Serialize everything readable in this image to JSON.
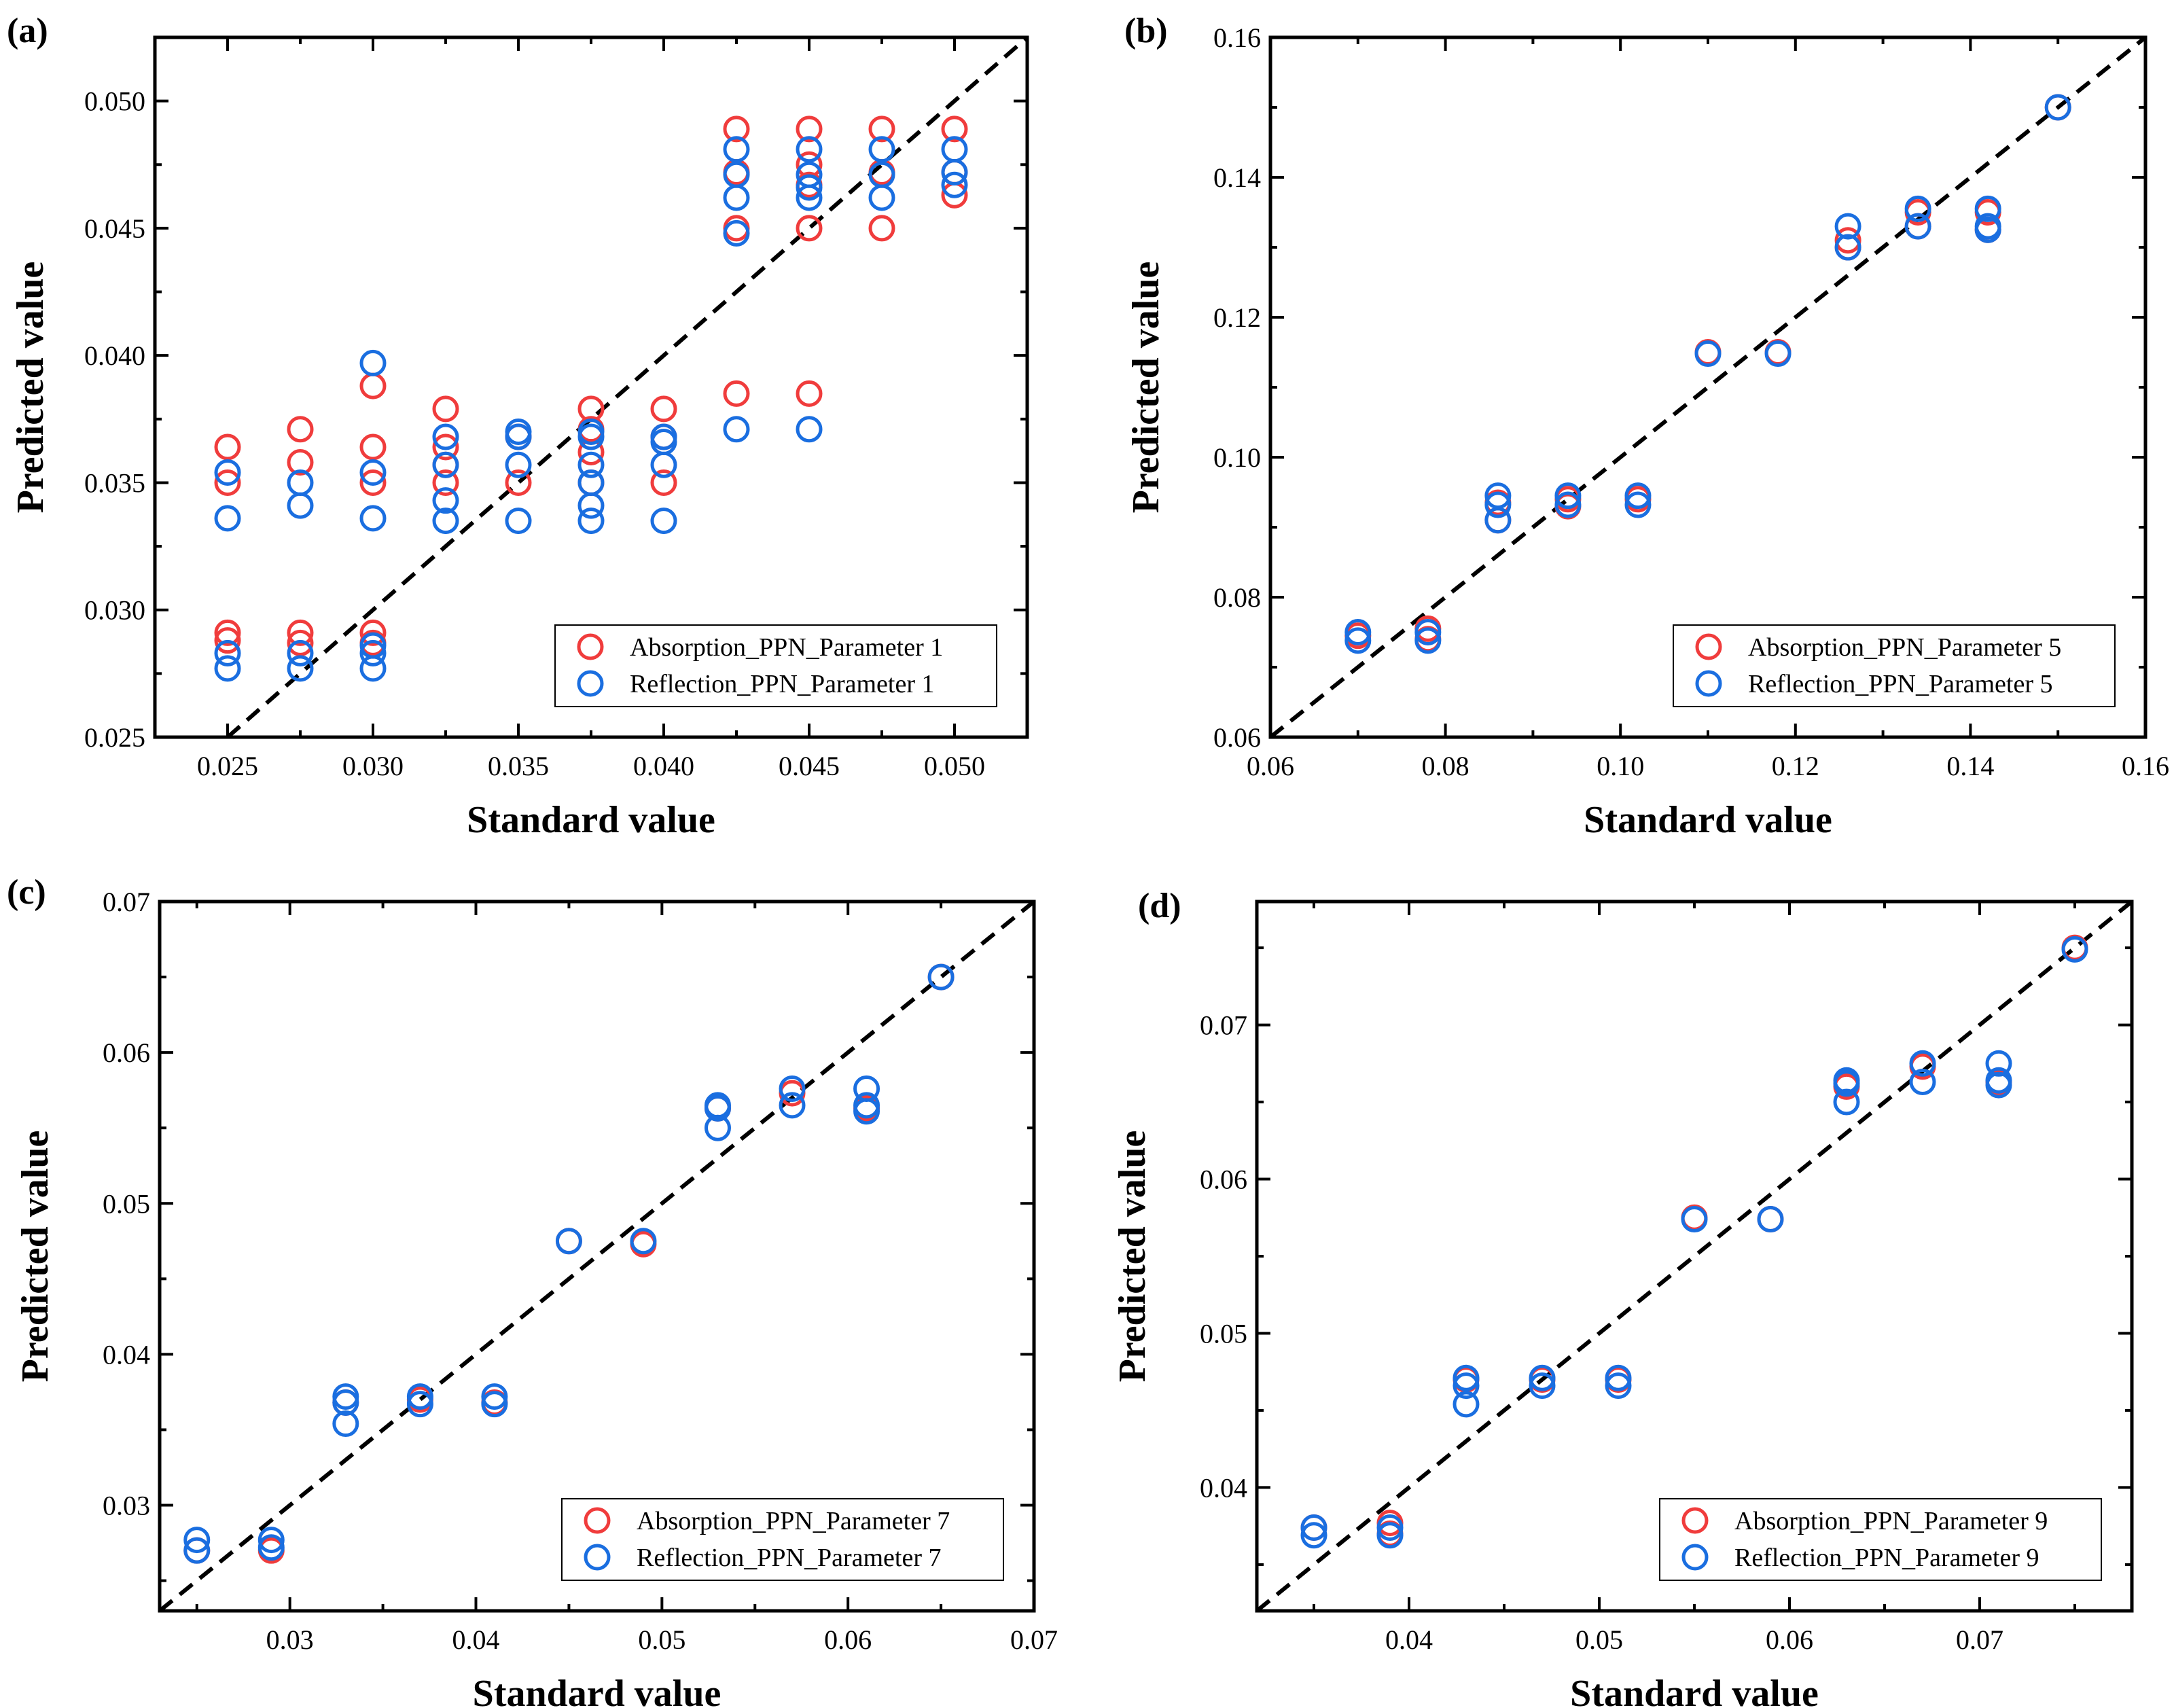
{
  "colors": {
    "absorption": "#f03c3c",
    "reflection": "#1a6ee0",
    "identity_line": "#000000"
  },
  "chart_data": [
    {
      "type": "scatter",
      "panel_label": "(a)",
      "xlabel": "Standard value",
      "ylabel": "Predicted value",
      "xlim": [
        0.0225,
        0.0525
      ],
      "ylim": [
        0.025,
        0.0525
      ],
      "xticks": [
        "0.025",
        "0.030",
        "0.035",
        "0.040",
        "0.045",
        "0.050"
      ],
      "yticks": [
        "0.025",
        "0.030",
        "0.035",
        "0.040",
        "0.045",
        "0.050"
      ],
      "xtick_values": [
        0.025,
        0.03,
        0.035,
        0.04,
        0.045,
        0.05
      ],
      "ytick_values": [
        0.025,
        0.03,
        0.035,
        0.04,
        0.045,
        0.05
      ],
      "legend_position": "bottom-right",
      "series": [
        {
          "name": "Absorption_PPN_Parameter 1",
          "color_key": "absorption",
          "points": [
            [
              0.025,
              0.0364
            ],
            [
              0.025,
              0.035
            ],
            [
              0.025,
              0.0291
            ],
            [
              0.025,
              0.0288
            ],
            [
              0.0275,
              0.0371
            ],
            [
              0.0275,
              0.0358
            ],
            [
              0.0275,
              0.0291
            ],
            [
              0.0275,
              0.0287
            ],
            [
              0.03,
              0.0388
            ],
            [
              0.03,
              0.0364
            ],
            [
              0.03,
              0.035
            ],
            [
              0.03,
              0.0291
            ],
            [
              0.03,
              0.0287
            ],
            [
              0.0325,
              0.0379
            ],
            [
              0.0325,
              0.0364
            ],
            [
              0.0325,
              0.0357
            ],
            [
              0.0325,
              0.035
            ],
            [
              0.035,
              0.0368
            ],
            [
              0.035,
              0.035
            ],
            [
              0.0375,
              0.0379
            ],
            [
              0.0375,
              0.0371
            ],
            [
              0.0375,
              0.0362
            ],
            [
              0.0375,
              0.035
            ],
            [
              0.04,
              0.0379
            ],
            [
              0.04,
              0.0368
            ],
            [
              0.04,
              0.035
            ],
            [
              0.0425,
              0.0489
            ],
            [
              0.0425,
              0.0472
            ],
            [
              0.0425,
              0.045
            ],
            [
              0.0425,
              0.0385
            ],
            [
              0.045,
              0.0489
            ],
            [
              0.045,
              0.0475
            ],
            [
              0.045,
              0.0467
            ],
            [
              0.045,
              0.045
            ],
            [
              0.045,
              0.0385
            ],
            [
              0.0475,
              0.0489
            ],
            [
              0.0475,
              0.0472
            ],
            [
              0.0475,
              0.045
            ],
            [
              0.05,
              0.0489
            ],
            [
              0.05,
              0.0472
            ],
            [
              0.05,
              0.0463
            ]
          ]
        },
        {
          "name": "Reflection_PPN_Parameter 1",
          "color_key": "reflection",
          "points": [
            [
              0.025,
              0.0354
            ],
            [
              0.025,
              0.0336
            ],
            [
              0.025,
              0.0283
            ],
            [
              0.025,
              0.0277
            ],
            [
              0.0275,
              0.035
            ],
            [
              0.0275,
              0.0341
            ],
            [
              0.0275,
              0.0283
            ],
            [
              0.0275,
              0.0277
            ],
            [
              0.03,
              0.0397
            ],
            [
              0.03,
              0.0354
            ],
            [
              0.03,
              0.0336
            ],
            [
              0.03,
              0.0286
            ],
            [
              0.03,
              0.0283
            ],
            [
              0.03,
              0.0277
            ],
            [
              0.0325,
              0.0368
            ],
            [
              0.0325,
              0.0357
            ],
            [
              0.0325,
              0.0343
            ],
            [
              0.0325,
              0.0335
            ],
            [
              0.035,
              0.037
            ],
            [
              0.035,
              0.0368
            ],
            [
              0.035,
              0.0357
            ],
            [
              0.035,
              0.0335
            ],
            [
              0.0375,
              0.037
            ],
            [
              0.0375,
              0.0368
            ],
            [
              0.0375,
              0.0357
            ],
            [
              0.0375,
              0.035
            ],
            [
              0.0375,
              0.0341
            ],
            [
              0.0375,
              0.0335
            ],
            [
              0.04,
              0.0368
            ],
            [
              0.04,
              0.0366
            ],
            [
              0.04,
              0.0357
            ],
            [
              0.04,
              0.0335
            ],
            [
              0.0425,
              0.0481
            ],
            [
              0.0425,
              0.0471
            ],
            [
              0.0425,
              0.0462
            ],
            [
              0.0425,
              0.0448
            ],
            [
              0.0425,
              0.0371
            ],
            [
              0.045,
              0.0481
            ],
            [
              0.045,
              0.0471
            ],
            [
              0.045,
              0.0466
            ],
            [
              0.045,
              0.0462
            ],
            [
              0.045,
              0.0371
            ],
            [
              0.0475,
              0.0481
            ],
            [
              0.0475,
              0.0471
            ],
            [
              0.0475,
              0.0462
            ],
            [
              0.05,
              0.0481
            ],
            [
              0.05,
              0.0472
            ],
            [
              0.05,
              0.0467
            ]
          ]
        }
      ]
    },
    {
      "type": "scatter",
      "panel_label": "(b)",
      "xlabel": "Standard value",
      "ylabel": "Predicted value",
      "xlim": [
        0.06,
        0.16
      ],
      "ylim": [
        0.06,
        0.16
      ],
      "xticks": [
        "0.06",
        "0.08",
        "0.10",
        "0.12",
        "0.14",
        "0.16"
      ],
      "yticks": [
        "0.06",
        "0.08",
        "0.10",
        "0.12",
        "0.14",
        "0.16"
      ],
      "xtick_values": [
        0.06,
        0.08,
        0.1,
        0.12,
        0.14,
        0.16
      ],
      "ytick_values": [
        0.06,
        0.08,
        0.1,
        0.12,
        0.14,
        0.16
      ],
      "legend_position": "bottom-right",
      "series": [
        {
          "name": "Absorption_PPN_Parameter 5",
          "color_key": "absorption",
          "points": [
            [
              0.07,
              0.0745
            ],
            [
              0.078,
              0.0755
            ],
            [
              0.078,
              0.074
            ],
            [
              0.086,
              0.091
            ],
            [
              0.086,
              0.0935
            ],
            [
              0.094,
              0.094
            ],
            [
              0.094,
              0.093
            ],
            [
              0.102,
              0.094
            ],
            [
              0.11,
              0.115
            ],
            [
              0.118,
              0.115
            ],
            [
              0.126,
              0.131
            ],
            [
              0.126,
              0.13
            ],
            [
              0.134,
              0.135
            ],
            [
              0.134,
              0.133
            ],
            [
              0.142,
              0.135
            ],
            [
              0.142,
              0.1325
            ],
            [
              0.15,
              0.15
            ]
          ]
        },
        {
          "name": "Reflection_PPN_Parameter 5",
          "color_key": "reflection",
          "points": [
            [
              0.07,
              0.075
            ],
            [
              0.07,
              0.0738
            ],
            [
              0.078,
              0.075
            ],
            [
              0.078,
              0.0738
            ],
            [
              0.086,
              0.0945
            ],
            [
              0.086,
              0.0932
            ],
            [
              0.086,
              0.091
            ],
            [
              0.094,
              0.0945
            ],
            [
              0.094,
              0.0932
            ],
            [
              0.102,
              0.0945
            ],
            [
              0.102,
              0.0932
            ],
            [
              0.11,
              0.1148
            ],
            [
              0.118,
              0.1148
            ],
            [
              0.126,
              0.133
            ],
            [
              0.126,
              0.13
            ],
            [
              0.134,
              0.1355
            ],
            [
              0.134,
              0.133
            ],
            [
              0.142,
              0.1355
            ],
            [
              0.142,
              0.133
            ],
            [
              0.142,
              0.1325
            ],
            [
              0.15,
              0.15
            ]
          ]
        }
      ]
    },
    {
      "type": "scatter",
      "panel_label": "(c)",
      "xlabel": "Standard value",
      "ylabel": "Predicted value",
      "xlim": [
        0.023,
        0.07
      ],
      "ylim": [
        0.023,
        0.07
      ],
      "xticks": [
        "0.03",
        "0.04",
        "0.05",
        "0.06",
        "0.07"
      ],
      "yticks": [
        "0.03",
        "0.04",
        "0.05",
        "0.06",
        "0.07"
      ],
      "xtick_values": [
        0.03,
        0.04,
        0.05,
        0.06,
        0.07
      ],
      "ytick_values": [
        0.03,
        0.04,
        0.05,
        0.06,
        0.07
      ],
      "legend_position": "bottom-right",
      "series": [
        {
          "name": "Absorption_PPN_Parameter 7",
          "color_key": "absorption",
          "points": [
            [
              0.025,
              0.027
            ],
            [
              0.029,
              0.027
            ],
            [
              0.033,
              0.0368
            ],
            [
              0.037,
              0.037
            ],
            [
              0.041,
              0.0368
            ],
            [
              0.045,
              0.0475
            ],
            [
              0.049,
              0.0473
            ],
            [
              0.053,
              0.0563
            ],
            [
              0.057,
              0.0573
            ],
            [
              0.061,
              0.0563
            ],
            [
              0.065,
              0.065
            ]
          ]
        },
        {
          "name": "Reflection_PPN_Parameter 7",
          "color_key": "reflection",
          "points": [
            [
              0.025,
              0.0277
            ],
            [
              0.025,
              0.027
            ],
            [
              0.029,
              0.0277
            ],
            [
              0.029,
              0.0272
            ],
            [
              0.033,
              0.0372
            ],
            [
              0.033,
              0.0368
            ],
            [
              0.033,
              0.0354
            ],
            [
              0.037,
              0.0372
            ],
            [
              0.037,
              0.0367
            ],
            [
              0.041,
              0.0372
            ],
            [
              0.041,
              0.0367
            ],
            [
              0.045,
              0.0475
            ],
            [
              0.049,
              0.0475
            ],
            [
              0.053,
              0.0565
            ],
            [
              0.053,
              0.0563
            ],
            [
              0.053,
              0.055
            ],
            [
              0.057,
              0.0576
            ],
            [
              0.057,
              0.0565
            ],
            [
              0.061,
              0.0576
            ],
            [
              0.061,
              0.0565
            ],
            [
              0.061,
              0.0561
            ],
            [
              0.065,
              0.065
            ]
          ]
        }
      ]
    },
    {
      "type": "scatter",
      "panel_label": "(d)",
      "xlabel": "Standard value",
      "ylabel": "Predicted value",
      "xlim": [
        0.032,
        0.078
      ],
      "ylim": [
        0.032,
        0.078
      ],
      "xticks": [
        "0.04",
        "0.05",
        "0.06",
        "0.07"
      ],
      "yticks": [
        "0.04",
        "0.05",
        "0.06",
        "0.07"
      ],
      "xtick_values": [
        0.04,
        0.05,
        0.06,
        0.07
      ],
      "ytick_values": [
        0.04,
        0.05,
        0.06,
        0.07
      ],
      "legend_position": "bottom-right",
      "series": [
        {
          "name": "Absorption_PPN_Parameter 9",
          "color_key": "absorption",
          "points": [
            [
              0.035,
              0.0374
            ],
            [
              0.039,
              0.0377
            ],
            [
              0.039,
              0.037
            ],
            [
              0.043,
              0.047
            ],
            [
              0.047,
              0.047
            ],
            [
              0.051,
              0.047
            ],
            [
              0.055,
              0.0575
            ],
            [
              0.059,
              0.0574
            ],
            [
              0.063,
              0.066
            ],
            [
              0.067,
              0.0673
            ],
            [
              0.071,
              0.0663
            ],
            [
              0.075,
              0.075
            ]
          ]
        },
        {
          "name": "Reflection_PPN_Parameter 9",
          "color_key": "reflection",
          "points": [
            [
              0.035,
              0.0374
            ],
            [
              0.035,
              0.0369
            ],
            [
              0.039,
              0.0374
            ],
            [
              0.039,
              0.0369
            ],
            [
              0.043,
              0.0471
            ],
            [
              0.043,
              0.0466
            ],
            [
              0.043,
              0.0454
            ],
            [
              0.047,
              0.0471
            ],
            [
              0.047,
              0.0466
            ],
            [
              0.051,
              0.0471
            ],
            [
              0.051,
              0.0466
            ],
            [
              0.055,
              0.0574
            ],
            [
              0.059,
              0.0574
            ],
            [
              0.063,
              0.0664
            ],
            [
              0.063,
              0.0662
            ],
            [
              0.063,
              0.065
            ],
            [
              0.067,
              0.0675
            ],
            [
              0.067,
              0.0663
            ],
            [
              0.071,
              0.0675
            ],
            [
              0.071,
              0.0664
            ],
            [
              0.071,
              0.0661
            ],
            [
              0.075,
              0.0749
            ]
          ]
        }
      ]
    }
  ]
}
